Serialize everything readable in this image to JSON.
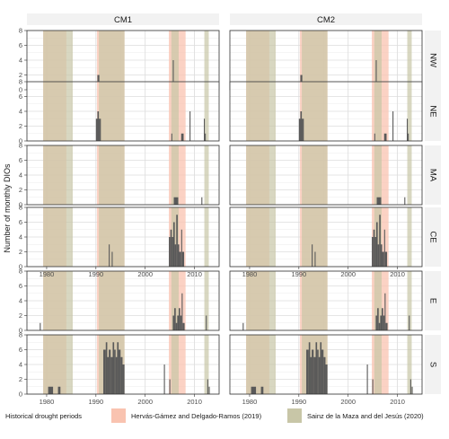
{
  "chart_data": {
    "type": "bar",
    "ylabel": "Number of monthly DIOs",
    "xlabel": "",
    "xlim": [
      1976,
      2015
    ],
    "ylim": [
      0,
      8
    ],
    "x_ticks": [
      1980,
      1990,
      2000,
      2010
    ],
    "y_ticks": [
      0,
      2,
      4,
      6,
      8
    ],
    "columns": [
      "CM1",
      "CM2"
    ],
    "rows": [
      "NW",
      "NE",
      "MA",
      "CE",
      "E",
      "S"
    ],
    "grid": true,
    "legend": {
      "position": "bottom",
      "title": "Historical drought periods",
      "entries": [
        {
          "label": "Hervás-Gámez and Delgado-Ramos (2019)",
          "color": "#f9c3b0"
        },
        {
          "label": "Sainz de la Maza and del Jesús (2020)",
          "color": "#c8c6a7"
        }
      ]
    },
    "drought_periods": {
      "herv": [
        [
          1979.3,
          1984.0
        ],
        [
          1990.2,
          1995.8
        ],
        [
          2004.8,
          2008.2
        ]
      ],
      "sainz": [
        [
          1979.3,
          1985.3
        ],
        [
          1990.6,
          1995.8
        ],
        [
          2005.3,
          2006.8
        ],
        [
          2012.0,
          2012.9
        ]
      ]
    },
    "colors": {
      "bar": "#595959",
      "herv": "#f9c3b0",
      "sainz": "#c8c6a7",
      "panel": "#ebebeb",
      "strip": "#f2f2f2",
      "border": "#333333"
    },
    "panels": [
      {
        "row": "NW",
        "col": "CM1",
        "bars": [
          [
            1990.3,
            1990.7,
            2
          ],
          [
            2005.6,
            2005.8,
            4
          ],
          [
            2007.5,
            2007.7,
            1
          ]
        ]
      },
      {
        "row": "NW",
        "col": "CM2",
        "bars": [
          [
            1990.3,
            1990.7,
            2
          ],
          [
            2005.6,
            2005.8,
            4
          ],
          [
            2007.5,
            2007.7,
            1
          ]
        ]
      },
      {
        "row": "NE",
        "col": "CM1",
        "bars": [
          [
            1990.0,
            1990.3,
            3
          ],
          [
            1990.3,
            1990.6,
            4
          ],
          [
            1990.6,
            1991.0,
            3
          ],
          [
            2005.3,
            2005.5,
            1
          ],
          [
            2007.3,
            2007.8,
            1
          ],
          [
            2009.0,
            2009.2,
            4
          ],
          [
            2011.9,
            2012.1,
            3
          ],
          [
            2012.1,
            2012.3,
            1
          ]
        ]
      },
      {
        "row": "NE",
        "col": "CM2",
        "bars": [
          [
            1990.0,
            1990.3,
            3
          ],
          [
            1990.3,
            1990.6,
            4
          ],
          [
            1990.6,
            1991.0,
            3
          ],
          [
            2005.3,
            2005.5,
            1
          ],
          [
            2007.3,
            2007.8,
            1
          ],
          [
            2009.0,
            2009.2,
            4
          ],
          [
            2011.9,
            2012.1,
            3
          ],
          [
            2012.1,
            2012.3,
            1
          ]
        ]
      },
      {
        "row": "MA",
        "col": "CM1",
        "bars": [
          [
            2005.8,
            2006.7,
            1
          ],
          [
            2011.4,
            2011.6,
            1
          ]
        ]
      },
      {
        "row": "MA",
        "col": "CM2",
        "bars": [
          [
            2005.8,
            2006.7,
            1
          ],
          [
            2011.4,
            2011.6,
            1
          ]
        ]
      },
      {
        "row": "CE",
        "col": "CM1",
        "bars": [
          [
            1992.6,
            1992.8,
            3
          ],
          [
            1993.2,
            1993.4,
            2
          ],
          [
            2004.8,
            2005.1,
            4
          ],
          [
            2005.1,
            2005.4,
            5
          ],
          [
            2005.4,
            2005.7,
            4
          ],
          [
            2005.7,
            2006.0,
            6
          ],
          [
            2006.0,
            2006.3,
            3
          ],
          [
            2006.3,
            2006.6,
            7
          ],
          [
            2006.6,
            2006.9,
            3
          ],
          [
            2006.9,
            2007.3,
            2
          ],
          [
            2007.3,
            2007.5,
            5
          ],
          [
            2007.5,
            2007.9,
            2
          ]
        ]
      },
      {
        "row": "CE",
        "col": "CM2",
        "bars": [
          [
            1992.6,
            1992.8,
            3
          ],
          [
            1993.2,
            1993.4,
            2
          ],
          [
            2004.8,
            2005.1,
            4
          ],
          [
            2005.1,
            2005.4,
            5
          ],
          [
            2005.4,
            2005.7,
            4
          ],
          [
            2005.7,
            2006.0,
            6
          ],
          [
            2006.0,
            2006.3,
            3
          ],
          [
            2006.3,
            2006.6,
            7
          ],
          [
            2006.6,
            2006.9,
            3
          ],
          [
            2006.9,
            2007.3,
            2
          ],
          [
            2007.3,
            2007.5,
            5
          ],
          [
            2007.5,
            2007.9,
            2
          ]
        ]
      },
      {
        "row": "E",
        "col": "CM1",
        "bars": [
          [
            1978.6,
            1978.8,
            1
          ],
          [
            2005.6,
            2005.9,
            2
          ],
          [
            2005.9,
            2006.2,
            3
          ],
          [
            2006.2,
            2006.5,
            1
          ],
          [
            2006.5,
            2006.8,
            2
          ],
          [
            2006.8,
            2007.1,
            3
          ],
          [
            2007.1,
            2007.4,
            2
          ],
          [
            2007.4,
            2007.6,
            5
          ],
          [
            2007.6,
            2008.0,
            1
          ],
          [
            2012.3,
            2012.5,
            2
          ]
        ]
      },
      {
        "row": "E",
        "col": "CM2",
        "bars": [
          [
            1978.6,
            1978.8,
            1
          ],
          [
            2005.6,
            2005.9,
            2
          ],
          [
            2005.9,
            2006.2,
            3
          ],
          [
            2006.2,
            2006.5,
            1
          ],
          [
            2006.5,
            2006.8,
            2
          ],
          [
            2006.8,
            2007.1,
            3
          ],
          [
            2007.1,
            2007.4,
            2
          ],
          [
            2007.4,
            2007.6,
            5
          ],
          [
            2007.6,
            2008.0,
            1
          ],
          [
            2012.3,
            2012.5,
            2
          ]
        ]
      },
      {
        "row": "S",
        "col": "CM1",
        "bars": [
          [
            1980.3,
            1981.3,
            1
          ],
          [
            1982.3,
            1982.8,
            1
          ],
          [
            1991.5,
            1992.0,
            6
          ],
          [
            1992.0,
            1992.3,
            7
          ],
          [
            1992.3,
            1992.6,
            5
          ],
          [
            1992.6,
            1993.0,
            6
          ],
          [
            1993.0,
            1993.4,
            5
          ],
          [
            1993.4,
            1993.7,
            7
          ],
          [
            1993.7,
            1994.0,
            6
          ],
          [
            1994.0,
            1994.3,
            5
          ],
          [
            1994.3,
            1994.6,
            7
          ],
          [
            1994.6,
            1995.0,
            6
          ],
          [
            1995.0,
            1995.4,
            5
          ],
          [
            1995.4,
            1995.8,
            4
          ],
          [
            2003.8,
            2004.0,
            4
          ],
          [
            2004.9,
            2005.1,
            2
          ],
          [
            2012.6,
            2012.8,
            2
          ],
          [
            2012.9,
            2013.1,
            1
          ]
        ]
      },
      {
        "row": "S",
        "col": "CM2",
        "bars": [
          [
            1980.3,
            1981.3,
            1
          ],
          [
            1982.3,
            1982.8,
            1
          ],
          [
            1991.5,
            1992.0,
            6
          ],
          [
            1992.0,
            1992.3,
            7
          ],
          [
            1992.3,
            1992.6,
            5
          ],
          [
            1992.6,
            1993.0,
            6
          ],
          [
            1993.0,
            1993.4,
            5
          ],
          [
            1993.4,
            1993.7,
            7
          ],
          [
            1993.7,
            1994.0,
            6
          ],
          [
            1994.0,
            1994.3,
            5
          ],
          [
            1994.3,
            1994.6,
            7
          ],
          [
            1994.6,
            1995.0,
            6
          ],
          [
            1995.0,
            1995.4,
            5
          ],
          [
            1995.4,
            1995.8,
            4
          ],
          [
            2003.8,
            2004.0,
            4
          ],
          [
            2004.9,
            2005.1,
            2
          ],
          [
            2012.6,
            2012.8,
            2
          ],
          [
            2012.9,
            2013.1,
            1
          ]
        ]
      }
    ]
  }
}
